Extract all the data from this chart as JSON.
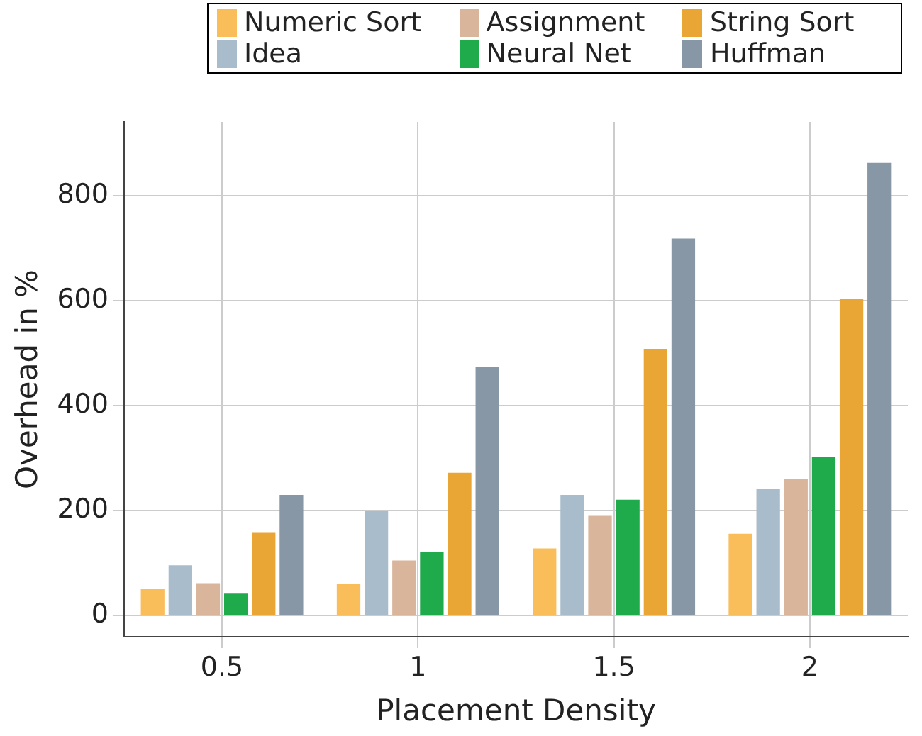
{
  "chart_data": {
    "type": "bar",
    "xlabel": "Placement Density",
    "ylabel": "Overhead in %",
    "categories": [
      "0.5",
      "1",
      "1.5",
      "2"
    ],
    "series": [
      {
        "name": "Numeric Sort",
        "color": "#f9bd5a",
        "values": [
          51,
          60,
          128,
          156
        ]
      },
      {
        "name": "Idea",
        "color": "#a9bccb",
        "values": [
          96,
          199,
          230,
          241
        ]
      },
      {
        "name": "Assignment",
        "color": "#d9b59b",
        "values": [
          62,
          105,
          190,
          261
        ]
      },
      {
        "name": "Neural Net",
        "color": "#1faa4b",
        "values": [
          42,
          122,
          221,
          303
        ]
      },
      {
        "name": "String Sort",
        "color": "#eaa634",
        "values": [
          159,
          272,
          508,
          604
        ]
      },
      {
        "name": "Huffman",
        "color": "#8797a6",
        "values": [
          230,
          474,
          718,
          862
        ]
      }
    ],
    "ylim": [
      -40,
      940
    ],
    "yticks": [
      0,
      200,
      400,
      600,
      800
    ],
    "grid": true,
    "legend": "top"
  }
}
